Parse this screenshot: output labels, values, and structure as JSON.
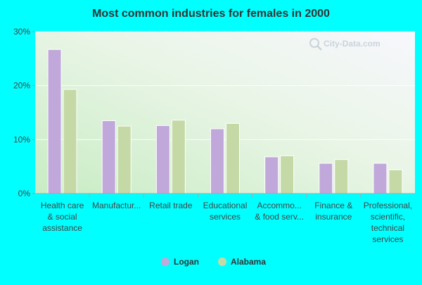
{
  "chart_data": {
    "type": "bar",
    "title": "Most common industries for females in 2000",
    "categories": [
      [
        "Health care",
        "& social",
        "assistance"
      ],
      [
        "Manufactur..."
      ],
      [
        "Retail trade"
      ],
      [
        "Educational",
        "services"
      ],
      [
        "Accommo...",
        "& food serv..."
      ],
      [
        "Finance &",
        "insurance"
      ],
      [
        "Professional,",
        "scientific,",
        "technical",
        "services"
      ]
    ],
    "series": [
      {
        "name": "Logan",
        "color": "#c0a8da",
        "values": [
          26.7,
          13.5,
          12.6,
          12.0,
          6.8,
          5.6,
          5.6
        ]
      },
      {
        "name": "Alabama",
        "color": "#c5d9a7",
        "values": [
          19.3,
          12.5,
          13.6,
          13.0,
          7.0,
          6.3,
          4.4
        ]
      }
    ],
    "yticks": [
      "0%",
      "10%",
      "20%",
      "30%"
    ],
    "ylim": [
      0,
      30
    ],
    "grid": true,
    "legend_position": "bottom-center",
    "watermark": "City-Data.com"
  }
}
